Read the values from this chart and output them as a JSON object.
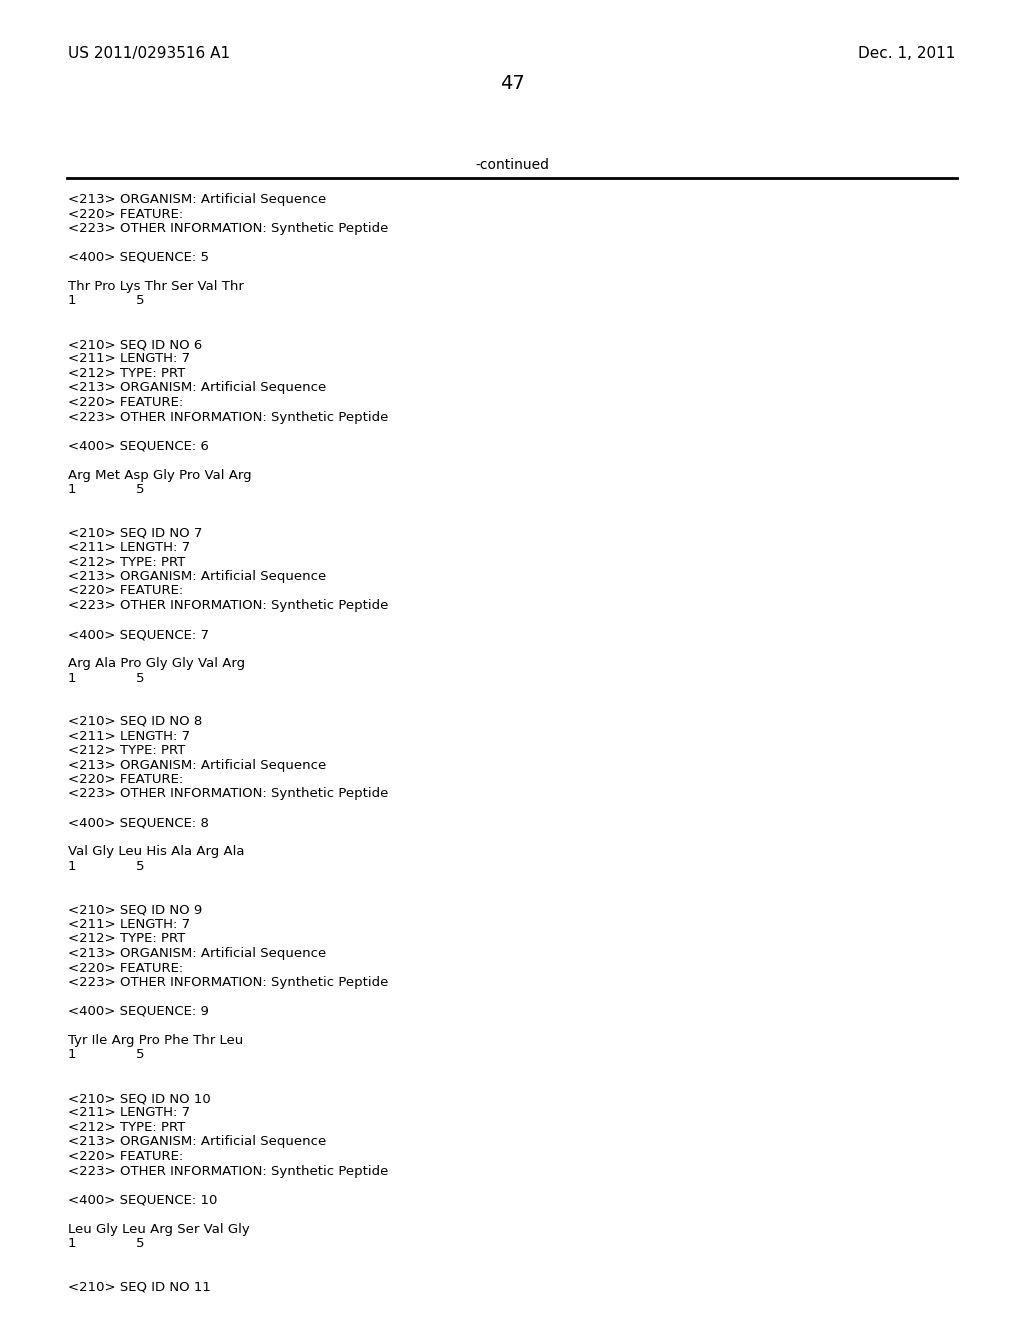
{
  "background_color": "#ffffff",
  "header_left": "US 2011/0293516 A1",
  "header_right": "Dec. 1, 2011",
  "page_number": "47",
  "continued_text": "-continued",
  "monospace_font": "Courier New",
  "serif_font": "Times New Roman",
  "body_lines": [
    {
      "text": "<213> ORGANISM: Artificial Sequence",
      "blank": false
    },
    {
      "text": "<220> FEATURE:",
      "blank": false
    },
    {
      "text": "<223> OTHER INFORMATION: Synthetic Peptide",
      "blank": false
    },
    {
      "text": "",
      "blank": true
    },
    {
      "text": "<400> SEQUENCE: 5",
      "blank": false
    },
    {
      "text": "",
      "blank": true
    },
    {
      "text": "Thr Pro Lys Thr Ser Val Thr",
      "blank": false
    },
    {
      "text": "1              5",
      "blank": false
    },
    {
      "text": "",
      "blank": true
    },
    {
      "text": "",
      "blank": true
    },
    {
      "text": "<210> SEQ ID NO 6",
      "blank": false
    },
    {
      "text": "<211> LENGTH: 7",
      "blank": false
    },
    {
      "text": "<212> TYPE: PRT",
      "blank": false
    },
    {
      "text": "<213> ORGANISM: Artificial Sequence",
      "blank": false
    },
    {
      "text": "<220> FEATURE:",
      "blank": false
    },
    {
      "text": "<223> OTHER INFORMATION: Synthetic Peptide",
      "blank": false
    },
    {
      "text": "",
      "blank": true
    },
    {
      "text": "<400> SEQUENCE: 6",
      "blank": false
    },
    {
      "text": "",
      "blank": true
    },
    {
      "text": "Arg Met Asp Gly Pro Val Arg",
      "blank": false
    },
    {
      "text": "1              5",
      "blank": false
    },
    {
      "text": "",
      "blank": true
    },
    {
      "text": "",
      "blank": true
    },
    {
      "text": "<210> SEQ ID NO 7",
      "blank": false
    },
    {
      "text": "<211> LENGTH: 7",
      "blank": false
    },
    {
      "text": "<212> TYPE: PRT",
      "blank": false
    },
    {
      "text": "<213> ORGANISM: Artificial Sequence",
      "blank": false
    },
    {
      "text": "<220> FEATURE:",
      "blank": false
    },
    {
      "text": "<223> OTHER INFORMATION: Synthetic Peptide",
      "blank": false
    },
    {
      "text": "",
      "blank": true
    },
    {
      "text": "<400> SEQUENCE: 7",
      "blank": false
    },
    {
      "text": "",
      "blank": true
    },
    {
      "text": "Arg Ala Pro Gly Gly Val Arg",
      "blank": false
    },
    {
      "text": "1              5",
      "blank": false
    },
    {
      "text": "",
      "blank": true
    },
    {
      "text": "",
      "blank": true
    },
    {
      "text": "<210> SEQ ID NO 8",
      "blank": false
    },
    {
      "text": "<211> LENGTH: 7",
      "blank": false
    },
    {
      "text": "<212> TYPE: PRT",
      "blank": false
    },
    {
      "text": "<213> ORGANISM: Artificial Sequence",
      "blank": false
    },
    {
      "text": "<220> FEATURE:",
      "blank": false
    },
    {
      "text": "<223> OTHER INFORMATION: Synthetic Peptide",
      "blank": false
    },
    {
      "text": "",
      "blank": true
    },
    {
      "text": "<400> SEQUENCE: 8",
      "blank": false
    },
    {
      "text": "",
      "blank": true
    },
    {
      "text": "Val Gly Leu His Ala Arg Ala",
      "blank": false
    },
    {
      "text": "1              5",
      "blank": false
    },
    {
      "text": "",
      "blank": true
    },
    {
      "text": "",
      "blank": true
    },
    {
      "text": "<210> SEQ ID NO 9",
      "blank": false
    },
    {
      "text": "<211> LENGTH: 7",
      "blank": false
    },
    {
      "text": "<212> TYPE: PRT",
      "blank": false
    },
    {
      "text": "<213> ORGANISM: Artificial Sequence",
      "blank": false
    },
    {
      "text": "<220> FEATURE:",
      "blank": false
    },
    {
      "text": "<223> OTHER INFORMATION: Synthetic Peptide",
      "blank": false
    },
    {
      "text": "",
      "blank": true
    },
    {
      "text": "<400> SEQUENCE: 9",
      "blank": false
    },
    {
      "text": "",
      "blank": true
    },
    {
      "text": "Tyr Ile Arg Pro Phe Thr Leu",
      "blank": false
    },
    {
      "text": "1              5",
      "blank": false
    },
    {
      "text": "",
      "blank": true
    },
    {
      "text": "",
      "blank": true
    },
    {
      "text": "<210> SEQ ID NO 10",
      "blank": false
    },
    {
      "text": "<211> LENGTH: 7",
      "blank": false
    },
    {
      "text": "<212> TYPE: PRT",
      "blank": false
    },
    {
      "text": "<213> ORGANISM: Artificial Sequence",
      "blank": false
    },
    {
      "text": "<220> FEATURE:",
      "blank": false
    },
    {
      "text": "<223> OTHER INFORMATION: Synthetic Peptide",
      "blank": false
    },
    {
      "text": "",
      "blank": true
    },
    {
      "text": "<400> SEQUENCE: 10",
      "blank": false
    },
    {
      "text": "",
      "blank": true
    },
    {
      "text": "Leu Gly Leu Arg Ser Val Gly",
      "blank": false
    },
    {
      "text": "1              5",
      "blank": false
    },
    {
      "text": "",
      "blank": true
    },
    {
      "text": "",
      "blank": true
    },
    {
      "text": "<210> SEQ ID NO 11",
      "blank": false
    }
  ]
}
